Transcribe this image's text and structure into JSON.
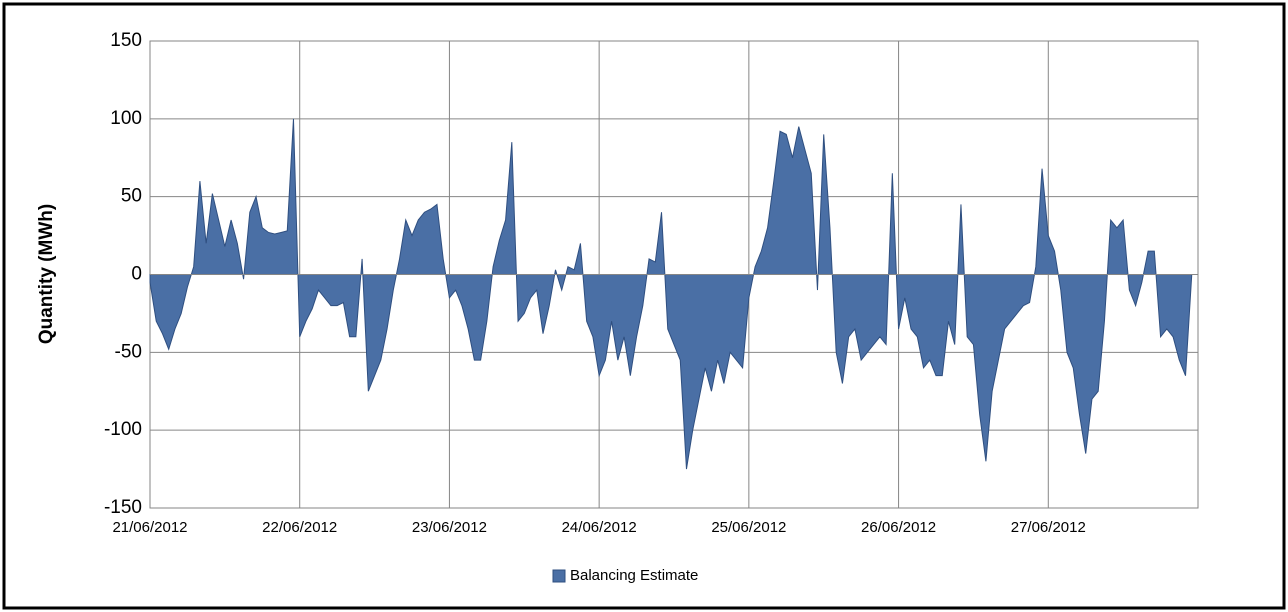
{
  "chart_data": {
    "type": "area",
    "y_label": "Quantity (MWh)",
    "legend_position": "bottom",
    "grid": true,
    "ylim": [
      -150,
      150
    ],
    "yticks": [
      -150,
      -100,
      -50,
      0,
      50,
      100,
      150
    ],
    "categories": [
      "21/06/2012",
      null,
      null,
      null,
      null,
      null,
      null,
      null,
      null,
      null,
      null,
      null,
      null,
      null,
      null,
      null,
      null,
      null,
      null,
      null,
      null,
      null,
      null,
      null,
      "22/06/2012",
      null,
      null,
      null,
      null,
      null,
      null,
      null,
      null,
      null,
      null,
      null,
      null,
      null,
      null,
      null,
      null,
      null,
      null,
      null,
      null,
      null,
      null,
      null,
      "23/06/2012",
      null,
      null,
      null,
      null,
      null,
      null,
      null,
      null,
      null,
      null,
      null,
      null,
      null,
      null,
      null,
      null,
      null,
      null,
      null,
      null,
      null,
      null,
      null,
      "24/06/2012",
      null,
      null,
      null,
      null,
      null,
      null,
      null,
      null,
      null,
      null,
      null,
      null,
      null,
      null,
      null,
      null,
      null,
      null,
      null,
      null,
      null,
      null,
      null,
      "25/06/2012",
      null,
      null,
      null,
      null,
      null,
      null,
      null,
      null,
      null,
      null,
      null,
      null,
      null,
      null,
      null,
      null,
      null,
      null,
      null,
      null,
      null,
      null,
      null,
      "26/06/2012",
      null,
      null,
      null,
      null,
      null,
      null,
      null,
      null,
      null,
      null,
      null,
      null,
      null,
      null,
      null,
      null,
      null,
      null,
      null,
      null,
      null,
      null,
      null,
      "27/06/2012",
      null,
      null,
      null,
      null,
      null,
      null,
      null,
      null,
      null,
      null,
      null,
      null,
      null,
      null,
      null,
      null,
      null,
      null,
      null,
      null,
      null,
      null,
      null
    ],
    "series": [
      {
        "name": "Balancing Estimate",
        "color": "#4a6fa5",
        "values": [
          -5,
          -30,
          -38,
          -48,
          -35,
          -25,
          -8,
          5,
          60,
          20,
          52,
          35,
          18,
          35,
          20,
          -3,
          40,
          50,
          30,
          27,
          26,
          27,
          28,
          100,
          -40,
          -30,
          -22,
          -10,
          -15,
          -20,
          -20,
          -18,
          -40,
          -40,
          10,
          -75,
          -65,
          -55,
          -35,
          -10,
          10,
          35,
          25,
          35,
          40,
          42,
          45,
          10,
          -15,
          -10,
          -20,
          -35,
          -55,
          -55,
          -30,
          5,
          22,
          35,
          85,
          -30,
          -25,
          -15,
          -10,
          -38,
          -20,
          3,
          -10,
          5,
          3,
          20,
          -30,
          -40,
          -65,
          -55,
          -30,
          -55,
          -40,
          -65,
          -40,
          -20,
          10,
          8,
          40,
          -35,
          -45,
          -55,
          -125,
          -100,
          -80,
          -60,
          -75,
          -55,
          -70,
          -50,
          -55,
          -60,
          -15,
          5,
          15,
          30,
          60,
          92,
          90,
          75,
          95,
          80,
          65,
          -10,
          90,
          30,
          -50,
          -70,
          -40,
          -35,
          -55,
          -50,
          -45,
          -40,
          -45,
          65,
          -35,
          -15,
          -35,
          -40,
          -60,
          -55,
          -65,
          -65,
          -30,
          -45,
          45,
          -40,
          -45,
          -90,
          -120,
          -75,
          -55,
          -35,
          -30,
          -25,
          -20,
          -18,
          5,
          68,
          25,
          15,
          -10,
          -50,
          -60,
          -90,
          -115,
          -80,
          -75,
          -30,
          35,
          30,
          35,
          -10,
          -20,
          -5,
          15,
          15,
          -40,
          -35,
          -40,
          -55,
          -65,
          0
        ]
      }
    ]
  }
}
